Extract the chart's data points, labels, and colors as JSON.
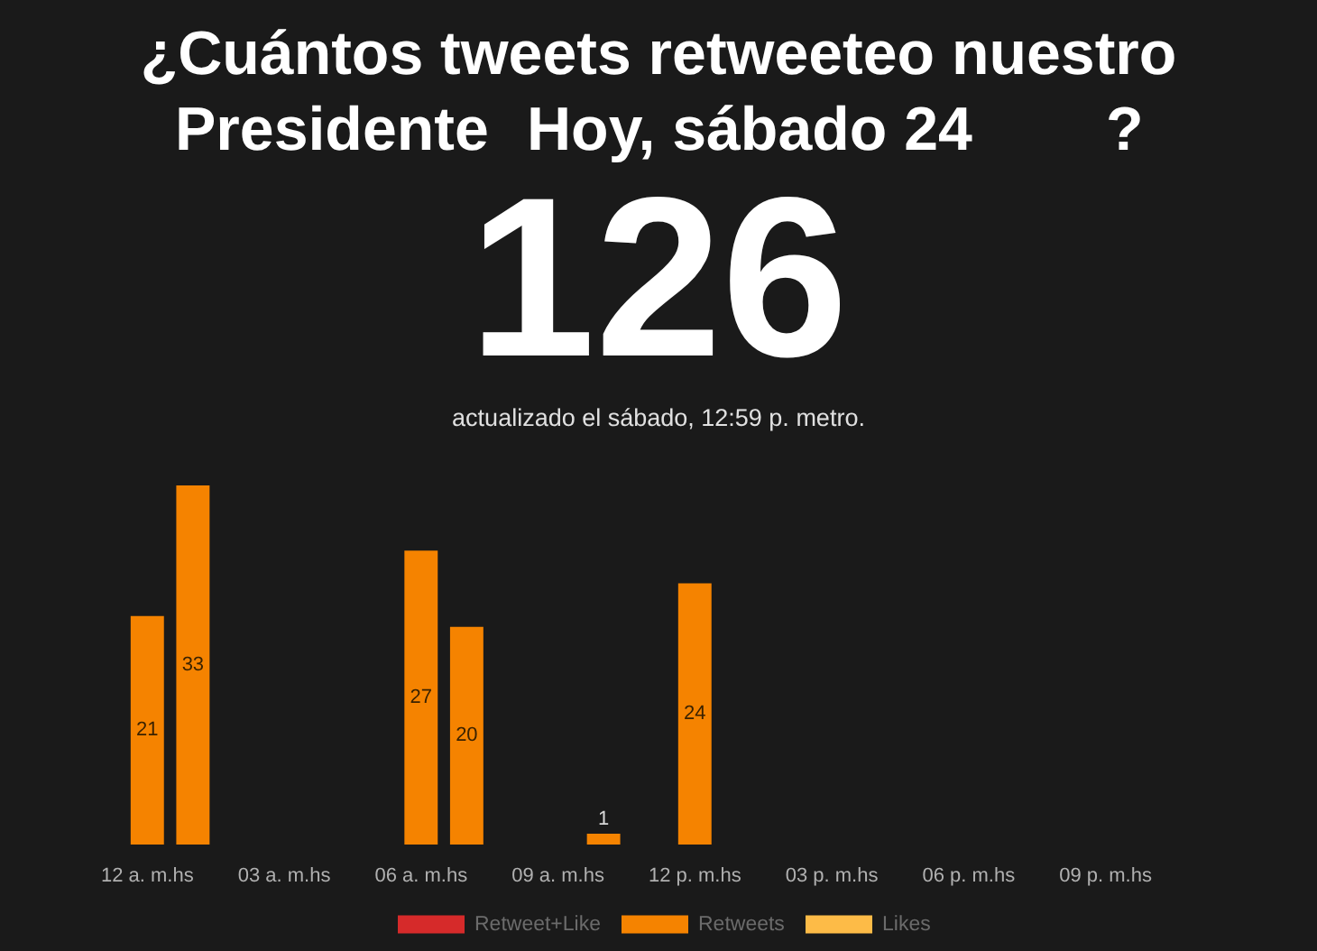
{
  "chart_data": {
    "type": "bar",
    "title": "¿Cuántos tweets retweeteo nuestro Presidente Hoy, sábado 24 ?",
    "subtitle": "126",
    "annotations": [
      "actualizado el sábado, 12:59 p. metro."
    ],
    "categories": [
      "12 a. m.hs",
      null,
      null,
      "03 a. m.hs",
      null,
      null,
      "06 a. m.hs",
      null,
      null,
      "09 a. m.hs",
      null,
      null,
      "12 p. m.hs",
      null,
      null,
      "03 p. m.hs",
      null,
      null,
      "06 p. m.hs",
      null,
      null,
      "09 p. m.hs",
      null,
      null
    ],
    "series": [
      {
        "name": "Retweet+Like",
        "color": "#d62a2a",
        "values": [
          null,
          null,
          null,
          null,
          null,
          null,
          null,
          null,
          null,
          null,
          null,
          null,
          null,
          null,
          null,
          null,
          null,
          null,
          null,
          null,
          null,
          null,
          null,
          null
        ]
      },
      {
        "name": "Retweets",
        "color": "#f58300",
        "values": [
          21,
          33,
          null,
          null,
          null,
          null,
          27,
          20,
          null,
          null,
          1,
          null,
          24,
          null,
          null,
          null,
          null,
          null,
          null,
          null,
          null,
          null,
          null,
          null
        ]
      },
      {
        "name": "Likes",
        "color": "#fdbb47",
        "values": [
          null,
          null,
          null,
          null,
          null,
          null,
          null,
          null,
          null,
          null,
          null,
          null,
          null,
          null,
          null,
          null,
          null,
          null,
          null,
          null,
          null,
          null,
          null,
          null
        ]
      }
    ],
    "data_labels": true,
    "legend": "bottom",
    "tick_labels": "x"
  }
}
